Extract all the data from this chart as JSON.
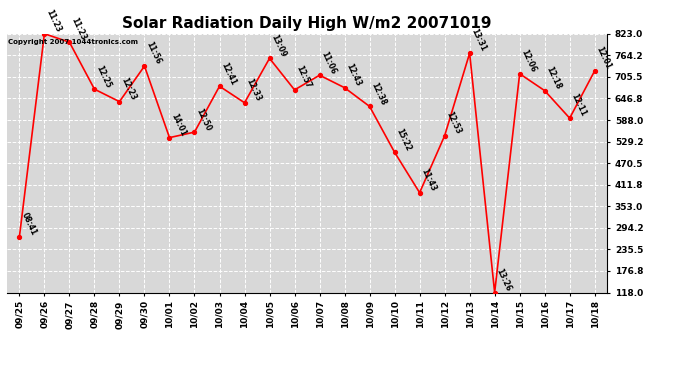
{
  "title": "Solar Radiation Daily High W/m2 20071019",
  "copyright": "Copyright 2007 1044tronics.com",
  "dates": [
    "09/25",
    "09/26",
    "09/27",
    "09/28",
    "09/29",
    "09/30",
    "10/01",
    "10/02",
    "10/03",
    "10/04",
    "10/05",
    "10/06",
    "10/07",
    "10/08",
    "10/09",
    "10/10",
    "10/11",
    "10/12",
    "10/13",
    "10/14",
    "10/15",
    "10/16",
    "10/17",
    "10/18"
  ],
  "values": [
    270,
    823,
    800,
    672,
    638,
    735,
    540,
    555,
    680,
    635,
    756,
    670,
    710,
    676,
    625,
    500,
    390,
    545,
    770,
    118,
    714,
    668,
    593,
    722
  ],
  "labels": [
    "08:41",
    "11:23",
    "11:23",
    "12:25",
    "12:23",
    "11:56",
    "14:01",
    "12:50",
    "12:41",
    "12:33",
    "13:09",
    "12:57",
    "11:06",
    "12:43",
    "12:38",
    "15:22",
    "11:43",
    "12:53",
    "13:31",
    "13:26",
    "12:06",
    "12:18",
    "12:11",
    "12:01"
  ],
  "ylim": [
    118.0,
    823.0
  ],
  "yticks": [
    118.0,
    176.8,
    235.5,
    294.2,
    353.0,
    411.8,
    470.5,
    529.2,
    588.0,
    646.8,
    705.5,
    764.2,
    823.0
  ],
  "ytick_labels": [
    "118.0",
    "176.8",
    "235.5",
    "294.2",
    "353.0",
    "411.8",
    "470.5",
    "529.2",
    "588.0",
    "646.8",
    "705.5",
    "764.2",
    "823.0"
  ],
  "line_color": "#ff0000",
  "marker_color": "#ff0000",
  "plot_bg": "#d8d8d8",
  "title_fontsize": 11,
  "label_fontsize": 5.5,
  "tick_fontsize": 6.5
}
